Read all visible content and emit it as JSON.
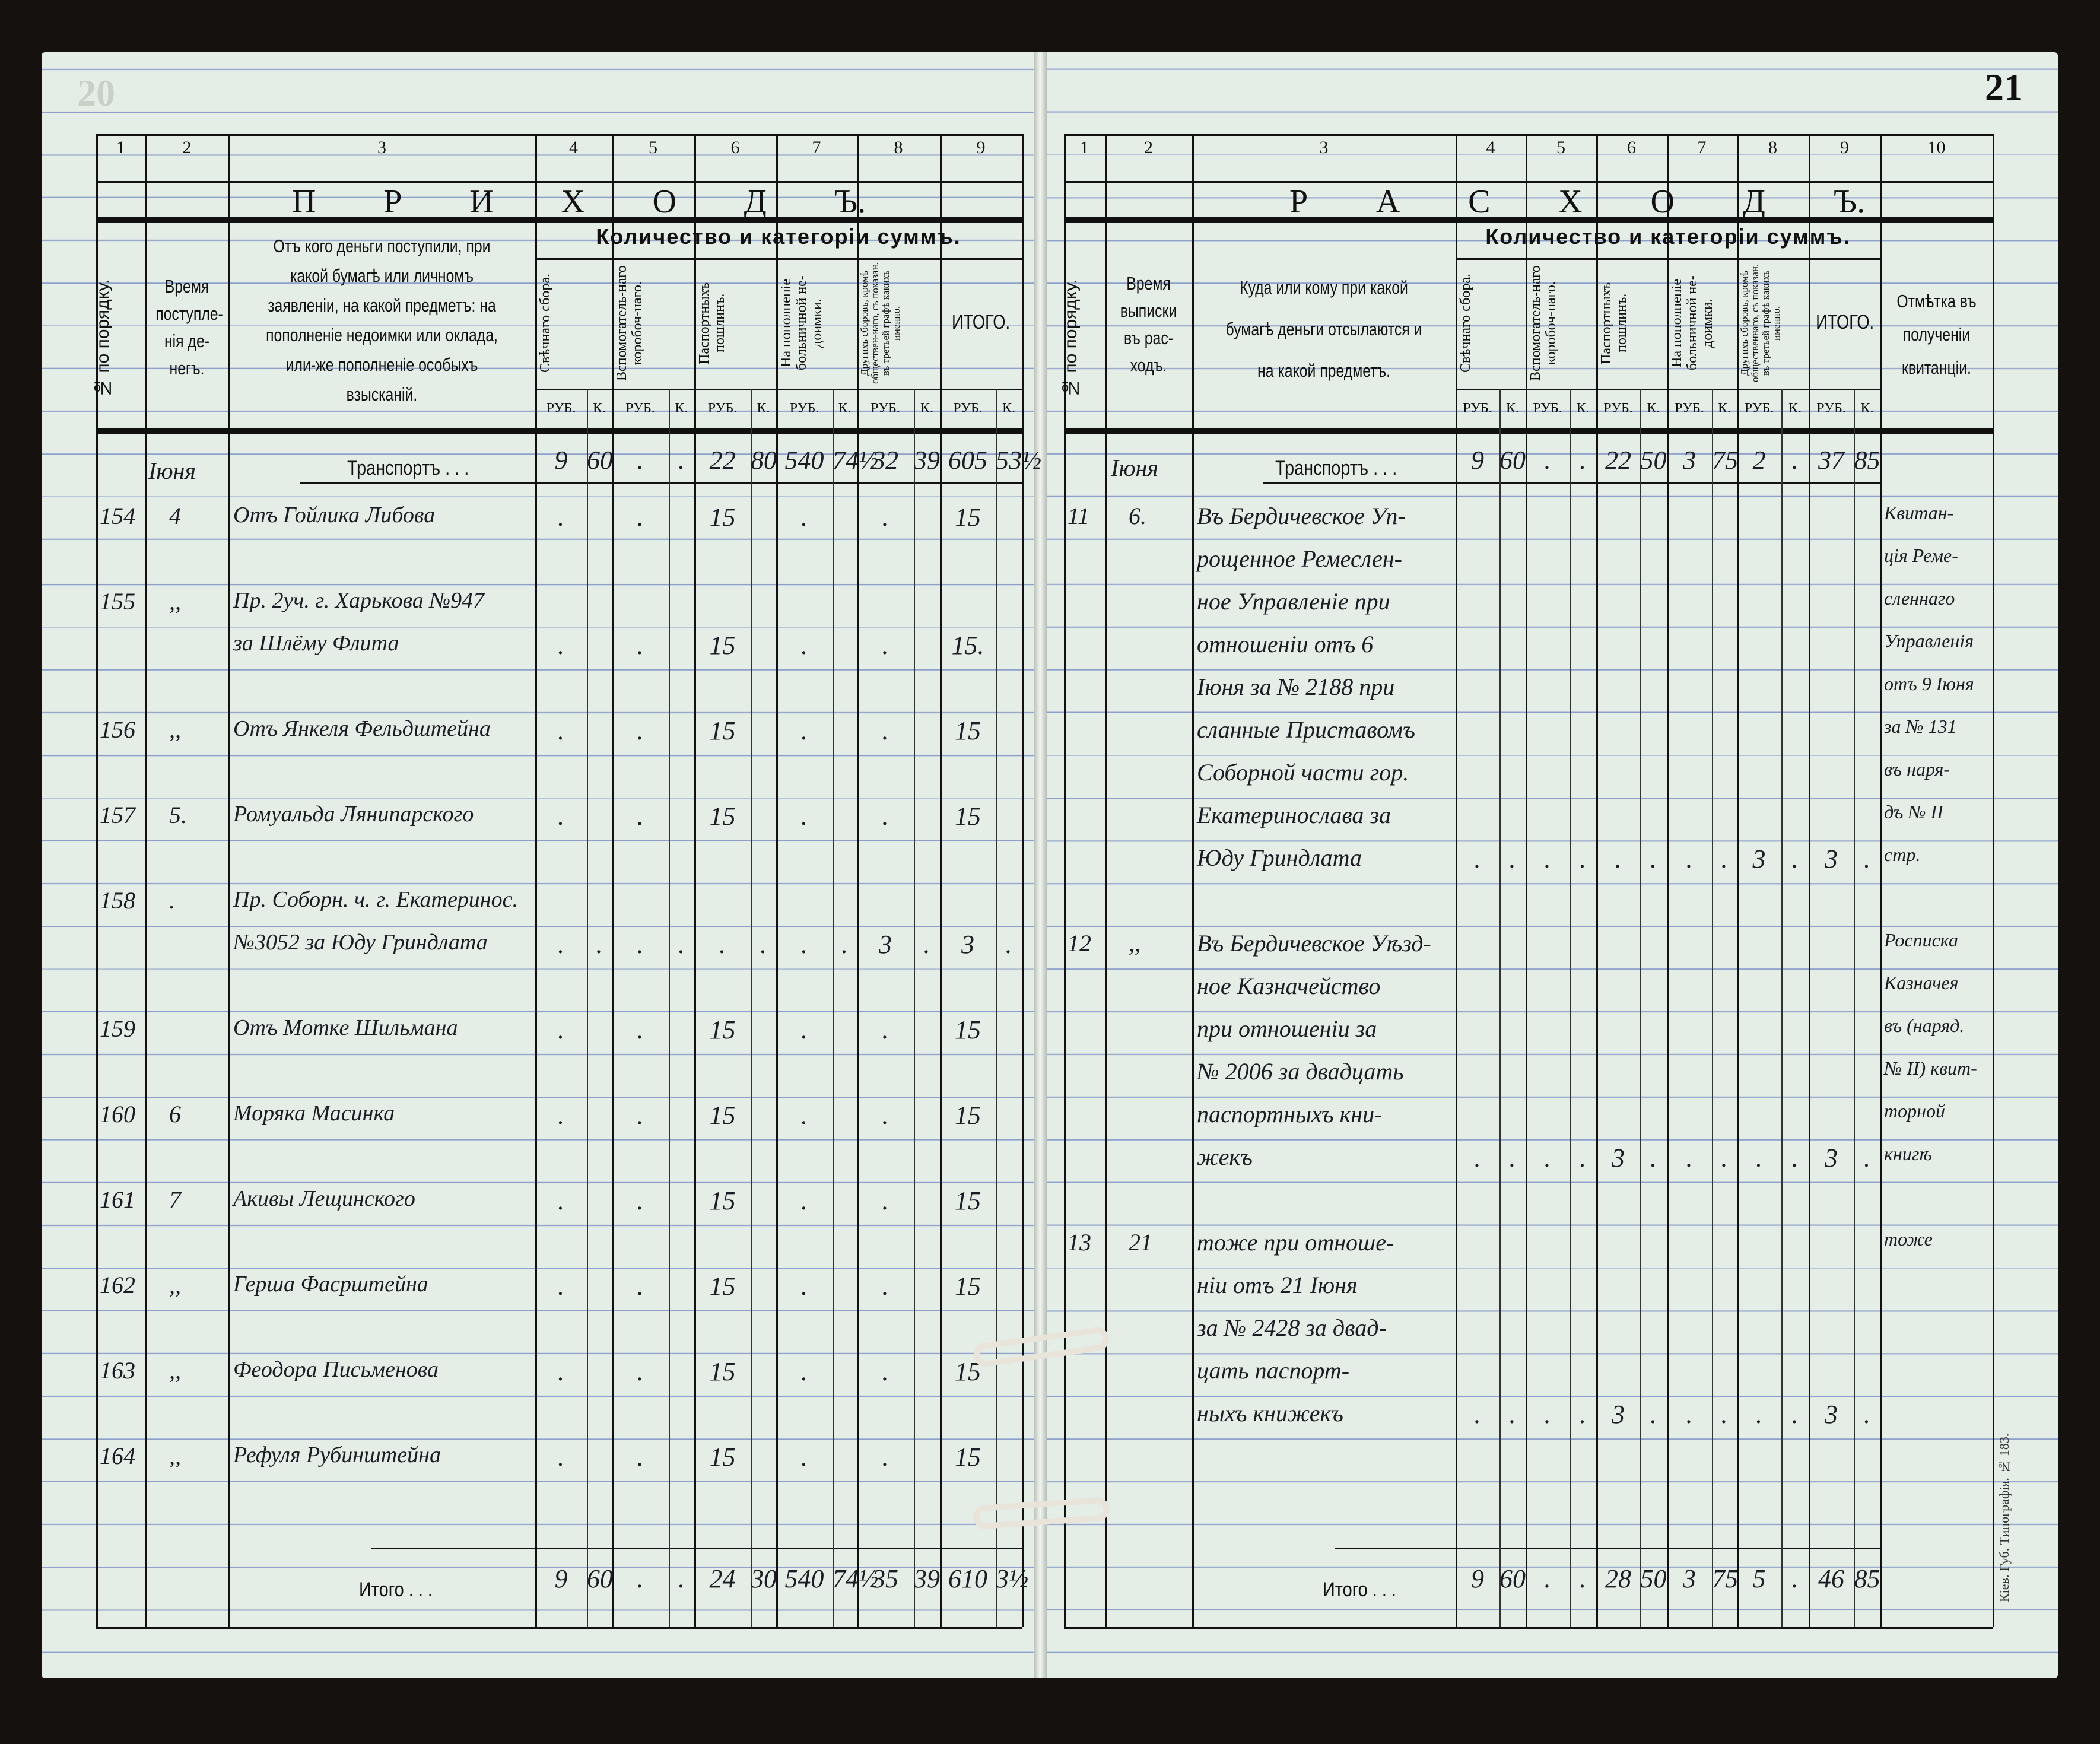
{
  "left_page": {
    "page_number": "20",
    "column_numbers": [
      "1",
      "2",
      "3",
      "4",
      "5",
      "6",
      "7",
      "8",
      "9"
    ],
    "title": [
      "П",
      "Р",
      "И",
      "Х",
      "О",
      "Д",
      "Ъ."
    ],
    "headers": {
      "no": "№ по порядку.",
      "time": "Время поступле-нія де-негъ.",
      "from": "Отъ кого деньги поступили, при какой бумагѣ или личномъ заявленіи, на какой предметъ: на пополненіе недоимки или оклада, или-же пополненіе особыхъ взысканій.",
      "quantity": "Количество и категоріи суммъ.",
      "categories": [
        "Свѣчнаго сбора.",
        "Вспомогатель-наго коробоч-наго.",
        "Паспортныхъ пошлинъ.",
        "На пополненіе больничной не-доимки.",
        "Другихъ сборовъ, кромѣ обществен-наго, съ показан. въ третьей графѣ какихъ именно.",
        "ИТОГО."
      ],
      "rub": "РУБ.",
      "kop": "К."
    },
    "month": "Іюня",
    "transport_label": "Транспортъ . . .",
    "transport": [
      "9",
      "60",
      ".",
      ".",
      "22",
      "80",
      "540",
      "74½",
      "32",
      "39",
      "605",
      "53½"
    ],
    "entries": [
      {
        "line": 0,
        "no": "154",
        "date": "4",
        "text": "Отъ Гойлика Либова",
        "amounts": [
          ".",
          "",
          ".",
          "",
          "15",
          "",
          ".",
          "",
          ".",
          "",
          "15",
          ""
        ]
      },
      {
        "line": 2,
        "no": "155",
        "date": ",,",
        "text": "Пр. 2уч. г. Харькова №947",
        "amounts": [
          "",
          "",
          "",
          "",
          "",
          "",
          "",
          "",
          "",
          "",
          "",
          ""
        ]
      },
      {
        "line": 3,
        "no": "",
        "date": "",
        "text": "за Шлёму Флита",
        "amounts": [
          ".",
          "",
          ".",
          "",
          "15",
          "",
          ".",
          "",
          ".",
          "",
          "15.",
          ""
        ]
      },
      {
        "line": 5,
        "no": "156",
        "date": ",,",
        "text": "Отъ Янкеля Фельдштейна",
        "amounts": [
          ".",
          "",
          ".",
          "",
          "15",
          "",
          ".",
          "",
          ".",
          "",
          "15",
          ""
        ]
      },
      {
        "line": 7,
        "no": "157",
        "date": "5.",
        "text": "Ромуальда Лянипарского",
        "amounts": [
          ".",
          "",
          ".",
          "",
          "15",
          "",
          ".",
          "",
          ".",
          "",
          "15",
          ""
        ]
      },
      {
        "line": 9,
        "no": "158",
        "date": ".",
        "text": "Пр. Соборн. ч. г. Екатеринос.",
        "amounts": [
          "",
          "",
          "",
          "",
          "",
          "",
          "",
          "",
          "",
          "",
          "",
          ""
        ]
      },
      {
        "line": 10,
        "no": "",
        "date": "",
        "text": "№3052 за Юду Гриндлата",
        "amounts": [
          ".",
          ".",
          ".",
          ".",
          ".",
          ".",
          ".",
          ".",
          "3",
          ".",
          "3",
          "."
        ]
      },
      {
        "line": 12,
        "no": "159",
        "date": "",
        "text": "Отъ Мотке Шильмана",
        "amounts": [
          ".",
          "",
          ".",
          "",
          "15",
          "",
          ".",
          "",
          ".",
          "",
          "15",
          ""
        ]
      },
      {
        "line": 14,
        "no": "160",
        "date": "6",
        "text": "Моряка Масинка",
        "amounts": [
          ".",
          "",
          ".",
          "",
          "15",
          "",
          ".",
          "",
          ".",
          "",
          "15",
          ""
        ]
      },
      {
        "line": 16,
        "no": "161",
        "date": "7",
        "text": "Акивы Лещинского",
        "amounts": [
          ".",
          "",
          ".",
          "",
          "15",
          "",
          ".",
          "",
          ".",
          "",
          "15",
          ""
        ]
      },
      {
        "line": 18,
        "no": "162",
        "date": ",,",
        "text": "Герша Фасрштейна",
        "amounts": [
          ".",
          "",
          ".",
          "",
          "15",
          "",
          ".",
          "",
          ".",
          "",
          "15",
          ""
        ]
      },
      {
        "line": 20,
        "no": "163",
        "date": ",,",
        "text": "Феодора Письменова",
        "amounts": [
          ".",
          "",
          ".",
          "",
          "15",
          "",
          ".",
          "",
          ".",
          "",
          "15",
          ""
        ]
      },
      {
        "line": 22,
        "no": "164",
        "date": ",,",
        "text": "Рефуля Рубинштейна",
        "amounts": [
          ".",
          "",
          ".",
          "",
          "15",
          "",
          ".",
          "",
          ".",
          "",
          "15",
          ""
        ]
      }
    ],
    "total_label": "Итого . . .",
    "total": [
      "9",
      "60",
      ".",
      ".",
      "24",
      "30",
      "540",
      "74½",
      "35",
      "39",
      "610",
      "3½"
    ]
  },
  "right_page": {
    "page_number": "21",
    "column_numbers": [
      "1",
      "2",
      "3",
      "4",
      "5",
      "6",
      "7",
      "8",
      "9",
      "10"
    ],
    "title": [
      "Р",
      "А",
      "С",
      "Х",
      "О",
      "Д",
      "Ъ."
    ],
    "headers": {
      "no": "№ по порядку.",
      "time": "Время выписки въ рас-ходъ.",
      "to": "Куда или кому при какой бумагѣ деньги отсылаются и на какой предметъ.",
      "quantity": "Количество и категоріи суммъ.",
      "categories": [
        "Свѣчнаго сбора.",
        "Вспомогатель-наго коробоч-наго.",
        "Паспортныхъ пошлинъ.",
        "На пополненіе больничной не-доимки.",
        "Другихъ сборовъ, кромѣ общественнаго, съ показан. въ третьей графѣ какихъ именно.",
        "ИТОГО."
      ],
      "note": "Отмѣтка въ полученіи квитанціи.",
      "rub": "РУБ.",
      "kop": "К."
    },
    "month": "Іюня",
    "transport_label": "Транспортъ . . .",
    "transport": [
      "9",
      "60",
      ".",
      ".",
      "22",
      "50",
      "3",
      "75",
      "2",
      ".",
      "37",
      "85"
    ],
    "entries": [
      {
        "line": 0,
        "no": "11",
        "date": "6.",
        "text": "Въ Бердичевское Уп-",
        "note": "Квитан-"
      },
      {
        "line": 1,
        "text": "рощенное Ремеслен-",
        "note": "ція Реме-"
      },
      {
        "line": 2,
        "text": "ное Управленіе при",
        "note": "сленнаго"
      },
      {
        "line": 3,
        "text": "отношеніи отъ 6",
        "note": "Управленія"
      },
      {
        "line": 4,
        "text": "Іюня за № 2188 при",
        "note": "отъ 9 Іюня"
      },
      {
        "line": 5,
        "text": "сланные Приставомъ",
        "note": "за № 131"
      },
      {
        "line": 6,
        "text": "Соборной части гор.",
        "note": "въ наря-"
      },
      {
        "line": 7,
        "text": "Екатеринослава за",
        "note": "дъ № II"
      },
      {
        "line": 8,
        "text": "Юду Гриндлата",
        "amounts": [
          ".",
          ".",
          ".",
          ".",
          ".",
          ".",
          ".",
          ".",
          "3",
          ".",
          "3",
          "."
        ],
        "note": "стр."
      },
      {
        "line": 10,
        "no": "12",
        "date": ",,",
        "text": "Въ Бердичевское Уѣзд-",
        "note": "Росписка"
      },
      {
        "line": 11,
        "text": "ное Казначейство",
        "note": "Казначея"
      },
      {
        "line": 12,
        "text": "при отношеніи за",
        "note": "въ (наряд."
      },
      {
        "line": 13,
        "text": "№ 2006 за двадцать",
        "note": "№ II) квит-"
      },
      {
        "line": 14,
        "text": "паспортныхъ кни-",
        "note": "торной"
      },
      {
        "line": 15,
        "text": "жекъ",
        "amounts": [
          ".",
          ".",
          ".",
          ".",
          "3",
          ".",
          ".",
          ".",
          ".",
          ".",
          "3",
          "."
        ],
        "note": "книгѣ"
      },
      {
        "line": 17,
        "no": "13",
        "date": "21",
        "text": "тоже при отноше-",
        "note": "тоже"
      },
      {
        "line": 18,
        "text": "ніи отъ 21 Іюня"
      },
      {
        "line": 19,
        "text": "за № 2428 за двад-"
      },
      {
        "line": 20,
        "text": "цать паспорт-"
      },
      {
        "line": 21,
        "text": "ныхъ книжекъ",
        "amounts": [
          ".",
          ".",
          ".",
          ".",
          "3",
          ".",
          ".",
          ".",
          ".",
          ".",
          "3",
          "."
        ]
      }
    ],
    "total_label": "Итого . . .",
    "total": [
      "9",
      "60",
      ".",
      ".",
      "28",
      "50",
      "3",
      "75",
      "5",
      ".",
      "46",
      "85"
    ],
    "printer_mark": "Кіев. Губ. Типографія. № 183."
  },
  "colors": {
    "paper": "#e4ede6",
    "ruling": "#8ea0cc",
    "ink": "#1c1c24",
    "background": "#15110f"
  }
}
